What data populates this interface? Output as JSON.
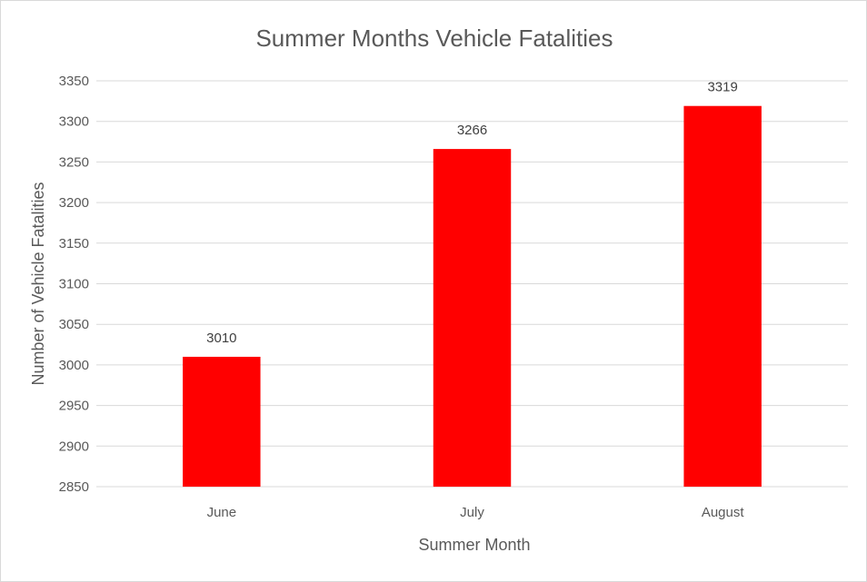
{
  "chart_data": {
    "type": "bar",
    "title": "Summer Months Vehicle Fatalities",
    "xlabel": "Summer Month",
    "ylabel": "Number of Vehicle Fatalities",
    "categories": [
      "June",
      "July",
      "August"
    ],
    "values": [
      3010,
      3266,
      3319
    ],
    "data_labels": [
      "3010",
      "3266",
      "3319"
    ],
    "ylim": [
      2850,
      3350
    ],
    "yticks": [
      2850,
      2900,
      2950,
      3000,
      3050,
      3100,
      3150,
      3200,
      3250,
      3300,
      3350
    ],
    "grid": true,
    "legend": "none",
    "bar_color": "#ff0000"
  }
}
